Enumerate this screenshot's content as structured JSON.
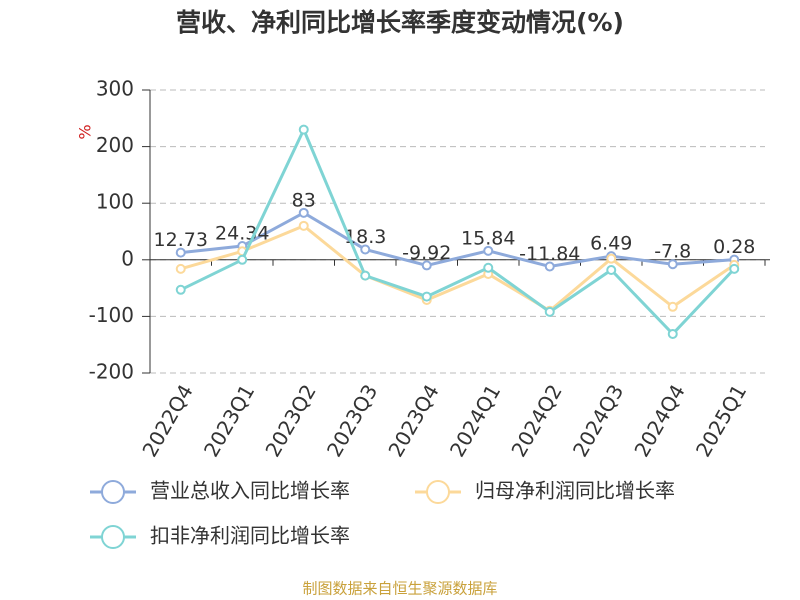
{
  "chart_data": {
    "type": "line",
    "title": "营收、净利同比增长率季度变动情况(%)",
    "y_label": "%",
    "categories": [
      "2022Q4",
      "2023Q1",
      "2023Q2",
      "2023Q3",
      "2023Q4",
      "2024Q1",
      "2024Q2",
      "2024Q3",
      "2024Q4",
      "2025Q1"
    ],
    "series": [
      {
        "name": "营业总收入同比增长率",
        "color": "#8eaadb",
        "values": [
          12.73,
          24.34,
          83,
          18.3,
          -9.92,
          15.84,
          -11.84,
          6.49,
          -7.8,
          0.28
        ],
        "show_labels": true
      },
      {
        "name": "归母净利润同比增长率",
        "color": "#fcd99a",
        "values": [
          -16,
          15,
          60,
          -28,
          -71,
          -25,
          -90,
          2,
          -83,
          -9
        ],
        "show_labels": false
      },
      {
        "name": "扣非净利润同比增长率",
        "color": "#7fd4d4",
        "values": [
          -53,
          0,
          230,
          -28,
          -65,
          -14,
          -92,
          -18,
          -131,
          -16
        ],
        "show_labels": false
      }
    ],
    "ylim": [
      -200,
      300
    ],
    "yticks": [
      -200,
      -100,
      0,
      100,
      200,
      300
    ],
    "grid": true,
    "source": "制图数据来自恒生聚源数据库"
  }
}
